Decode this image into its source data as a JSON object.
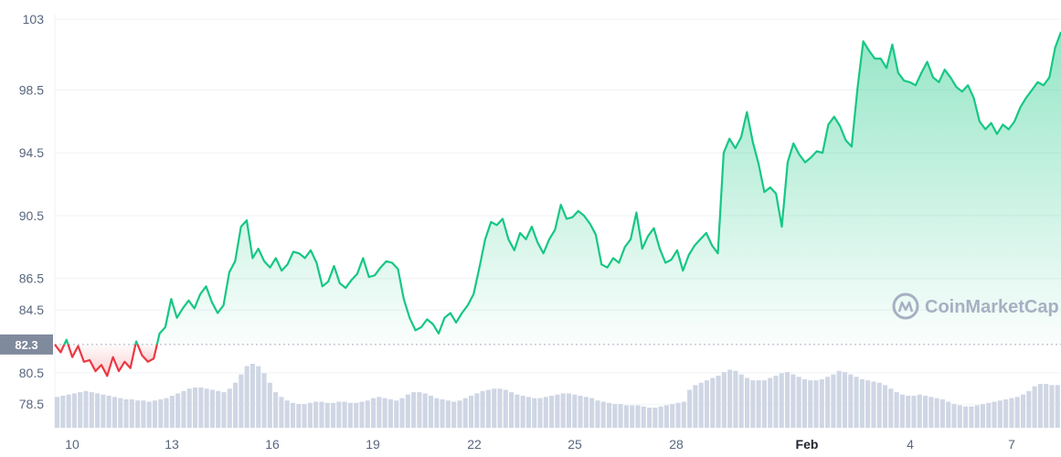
{
  "chart_data": {
    "type": "area",
    "title": "",
    "xlabel": "",
    "ylabel": "",
    "ylim": [
      77,
      103.3
    ],
    "y_ticks": [
      "103",
      "98.5",
      "94.5",
      "90.5",
      "86.5",
      "84.5",
      "80.5",
      "78.5"
    ],
    "x_ticks": [
      "10",
      "13",
      "16",
      "19",
      "22",
      "25",
      "28",
      "Feb",
      "4",
      "7"
    ],
    "reference_value": 82.3,
    "reference_label": "82.3",
    "series": [
      {
        "values": [
          82.3,
          81.8,
          82.6,
          81.5,
          82.2,
          81.2,
          81.3,
          80.6,
          81.0,
          80.3,
          81.5,
          80.6,
          81.2,
          80.8,
          82.5,
          81.6,
          81.2,
          81.4,
          83.0,
          83.4,
          85.2,
          84.0,
          84.6,
          85.1,
          84.6,
          85.5,
          86.0,
          85.0,
          84.3,
          84.8,
          86.9,
          87.6,
          89.8,
          90.2,
          87.8,
          88.4,
          87.6,
          87.2,
          87.8,
          87.0,
          87.4,
          88.2,
          88.1,
          87.8,
          88.3,
          87.5,
          86.0,
          86.3,
          87.3,
          86.2,
          85.9,
          86.4,
          86.8,
          87.8,
          86.6,
          86.7,
          87.2,
          87.6,
          87.5,
          87.1,
          85.2,
          84.0,
          83.2,
          83.4,
          83.9,
          83.6,
          83.0,
          84.0,
          84.3,
          83.7,
          84.3,
          84.8,
          85.5,
          87.2,
          89.0,
          90.1,
          89.9,
          90.3,
          89.0,
          88.3,
          89.4,
          89.0,
          89.8,
          88.8,
          88.1,
          89.0,
          89.6,
          91.2,
          90.3,
          90.4,
          90.8,
          90.5,
          90.0,
          89.3,
          87.4,
          87.2,
          87.8,
          87.5,
          88.5,
          89.0,
          90.7,
          88.4,
          89.2,
          89.7,
          88.4,
          87.5,
          87.7,
          88.3,
          87.0,
          88.0,
          88.6,
          89.0,
          89.4,
          88.6,
          88.1,
          94.5,
          95.4,
          94.8,
          95.5,
          97.1,
          95.2,
          93.8,
          92.0,
          92.3,
          91.9,
          89.8,
          93.9,
          95.1,
          94.4,
          93.9,
          94.2,
          94.6,
          94.5,
          96.3,
          96.8,
          96.2,
          95.3,
          94.9,
          98.6,
          101.6,
          101.0,
          100.5,
          100.5,
          99.9,
          101.4,
          99.6,
          99.1,
          99.0,
          98.8,
          99.6,
          100.3,
          99.3,
          99.0,
          99.8,
          99.3,
          98.7,
          98.4,
          98.8,
          98.0,
          96.5,
          96.0,
          96.4,
          95.7,
          96.3,
          96.0,
          96.5,
          97.4,
          98.0,
          98.5,
          99.0,
          98.8,
          99.3,
          101.2,
          102.2
        ]
      }
    ],
    "volume": [
      26,
      27,
      28,
      29,
      30,
      31,
      30,
      29,
      28,
      27,
      26,
      25,
      24,
      24,
      23,
      23,
      22,
      23,
      24,
      25,
      27,
      29,
      31,
      33,
      34,
      34,
      33,
      32,
      31,
      30,
      33,
      38,
      45,
      52,
      54,
      52,
      46,
      38,
      30,
      26,
      23,
      21,
      20,
      20,
      21,
      22,
      22,
      21,
      21,
      22,
      22,
      21,
      21,
      22,
      23,
      25,
      26,
      25,
      24,
      23,
      25,
      28,
      30,
      30,
      29,
      27,
      25,
      24,
      23,
      22,
      23,
      25,
      27,
      29,
      31,
      32,
      33,
      33,
      32,
      30,
      28,
      27,
      26,
      25,
      25,
      26,
      27,
      28,
      29,
      29,
      28,
      27,
      26,
      25,
      23,
      22,
      21,
      20,
      20,
      19,
      19,
      19,
      18,
      17,
      17,
      18,
      19,
      20,
      21,
      22,
      32,
      36,
      38,
      40,
      42,
      44,
      47,
      49,
      48,
      45,
      42,
      40,
      40,
      40,
      42,
      44,
      46,
      47,
      45,
      43,
      41,
      40,
      40,
      41,
      43,
      45,
      48,
      47,
      45,
      43,
      41,
      40,
      39,
      38,
      36,
      33,
      30,
      28,
      27,
      27,
      28,
      27,
      26,
      25,
      24,
      22,
      20,
      19,
      18,
      18,
      19,
      20,
      21,
      22,
      23,
      24,
      25,
      26,
      28,
      31,
      35,
      37,
      37,
      36,
      36
    ]
  },
  "watermark": {
    "text": "CoinMarketCap"
  },
  "colors": {
    "up": "#16c784",
    "down": "#ea3943",
    "grid": "#eff2f5",
    "volume": "#cfd6e4",
    "axis_text": "#58667e"
  }
}
